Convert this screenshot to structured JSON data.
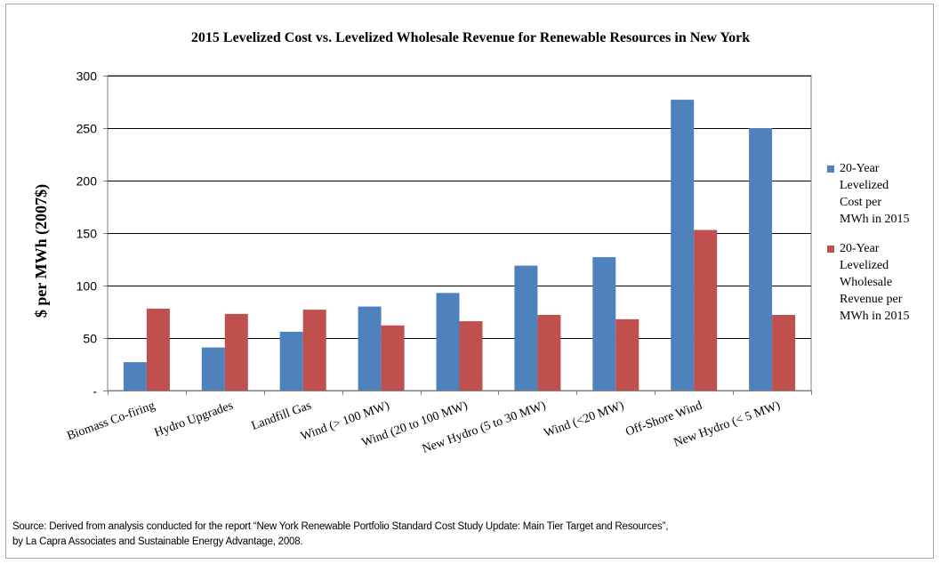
{
  "chart_data": {
    "type": "bar",
    "title": "2015 Levelized Cost vs. Levelized Wholesale Revenue  for Renewable Resources in New York",
    "ylabel": "$ per MWh (2007$)",
    "xlabel": "",
    "ylim": [
      0,
      300
    ],
    "yticks": [
      0,
      50,
      100,
      150,
      200,
      250,
      300
    ],
    "ytick_labels": [
      "-",
      "50",
      "100",
      "150",
      "200",
      "250",
      "300"
    ],
    "grid": true,
    "legend_position": "right",
    "categories": [
      "Biomass Co-firing",
      "Hydro Upgrades",
      "Landfill Gas",
      "Wind (> 100 MW)",
      "Wind (20 to 100 MW)",
      "New Hydro (5 to 30 MW)",
      "Wind (<20 MW)",
      "Off-Shore Wind",
      "New Hydro (< 5 MW)"
    ],
    "series": [
      {
        "name": "20-Year Levelized Cost per MWh in 2015",
        "name_lines": [
          "20-Year",
          "Levelized",
          "Cost per",
          "MWh in 2015"
        ],
        "color": "#4f81bd",
        "values": [
          27,
          41,
          56,
          80,
          93,
          119,
          127,
          277,
          250
        ]
      },
      {
        "name": "20-Year Levelized Wholesale Revenue per MWh in 2015",
        "name_lines": [
          "20-Year",
          "Levelized",
          "Wholesale",
          "Revenue per",
          "MWh in 2015"
        ],
        "color": "#c0504d",
        "values": [
          78,
          73,
          77,
          62,
          66,
          72,
          68,
          153,
          72
        ]
      }
    ]
  },
  "source": {
    "line1": "Source: Derived from analysis conducted for the report “New York Renewable Portfolio Standard Cost Study Update: Main Tier Target and Resources”,",
    "line2": "by La Capra Associates and Sustainable Energy Advantage, 2008."
  }
}
